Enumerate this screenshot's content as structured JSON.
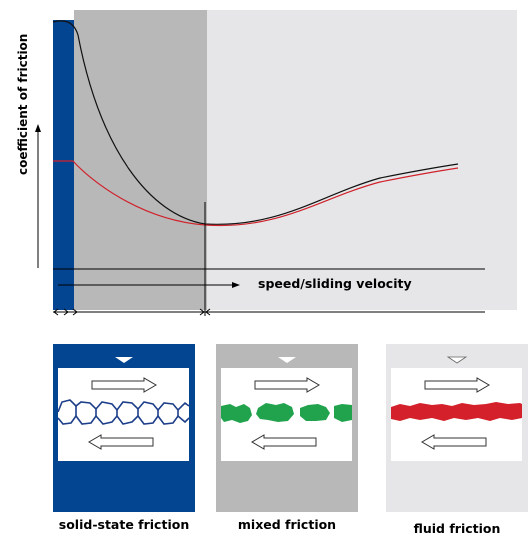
{
  "labels": {
    "y_axis": "coefficient of friction",
    "x_axis": "speed/sliding velocity"
  },
  "regions": [
    {
      "name": "solid-state friction",
      "color": "#044592"
    },
    {
      "name": "mixed friction",
      "color": "#b8b8b8"
    },
    {
      "name": "fluid friction",
      "color": "#e6e6e8"
    }
  ],
  "curves": {
    "static_curve_color": "#111111",
    "kinetic_curve_color": "#d0222b"
  },
  "panel_colors": {
    "solid": "#044592",
    "mixed": "#b8b8b8",
    "fluid": "#e6e6e8",
    "solid_layer": "#1d3f8a",
    "mixed_layer": "#21a34d",
    "fluid_layer": "#d3202b"
  }
}
